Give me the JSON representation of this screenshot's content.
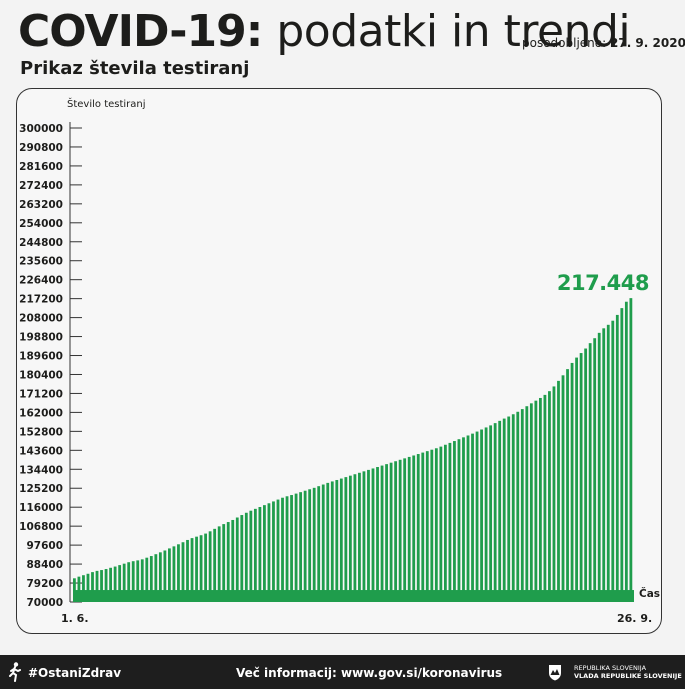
{
  "header": {
    "title_bold": "COVID-19:",
    "title_rest": "podatki in trendi",
    "updated_label": "posodobljeno:",
    "updated_date": "27. 9. 2020",
    "subtitle": "Prikaz števila testiranj"
  },
  "footer": {
    "hashtag": "#OstaniZdrav",
    "info": "Več informacij: www.gov.si/koronavirus",
    "gov_line1": "REPUBLIKA SLOVENIJA",
    "gov_line2": "VLADA REPUBLIKE SLOVENIJE",
    "runner_icon": "runner-icon",
    "crest_icon": "slovenia-crest-icon"
  },
  "colors": {
    "bar": "#1f9d4c",
    "accent_text": "#1f9d4c",
    "footer_bg": "#1e1e1e"
  },
  "chart_data": {
    "type": "bar",
    "title": "Prikaz števila testiranj",
    "ylabel": "Število testiranj",
    "xlabel": "Čas",
    "ylim": [
      70000,
      300000
    ],
    "yticks": [
      70000,
      79200,
      88400,
      97600,
      106800,
      116000,
      125200,
      134400,
      143600,
      152800,
      162000,
      171200,
      180400,
      189600,
      198800,
      208000,
      217200,
      226400,
      235600,
      244800,
      254000,
      263200,
      272400,
      281600,
      290800,
      300000
    ],
    "x_start_label": "1. 6.",
    "x_end_label": "26. 9.",
    "last_value_label": "217.448",
    "values": [
      81500,
      82300,
      83000,
      83700,
      84500,
      85100,
      85500,
      86000,
      86600,
      87200,
      87900,
      88600,
      89300,
      89800,
      90200,
      90700,
      91500,
      92300,
      93200,
      94100,
      95000,
      96000,
      97000,
      98000,
      99000,
      100100,
      101000,
      101700,
      102400,
      103200,
      104300,
      105500,
      106700,
      107800,
      108800,
      109800,
      111000,
      112200,
      113300,
      114300,
      115200,
      116100,
      117000,
      117900,
      118800,
      119700,
      120600,
      121300,
      121900,
      122600,
      123300,
      124000,
      124700,
      125400,
      126200,
      127000,
      127800,
      128500,
      129200,
      129900,
      130600,
      131300,
      132000,
      132700,
      133400,
      134100,
      134800,
      135500,
      136200,
      136900,
      137600,
      138300,
      139000,
      139700,
      140400,
      141100,
      141800,
      142500,
      143200,
      143900,
      144600,
      145400,
      146300,
      147200,
      148100,
      149000,
      149900,
      150800,
      151700,
      152700,
      153700,
      154700,
      155700,
      156800,
      157900,
      159000,
      160000,
      161100,
      162300,
      163600,
      165000,
      166400,
      167700,
      169000,
      170500,
      172300,
      174600,
      177300,
      180000,
      183000,
      186000,
      188600,
      190800,
      193000,
      195600,
      198000,
      200600,
      202800,
      204500,
      206500,
      209300,
      212600,
      215700,
      217448
    ]
  }
}
